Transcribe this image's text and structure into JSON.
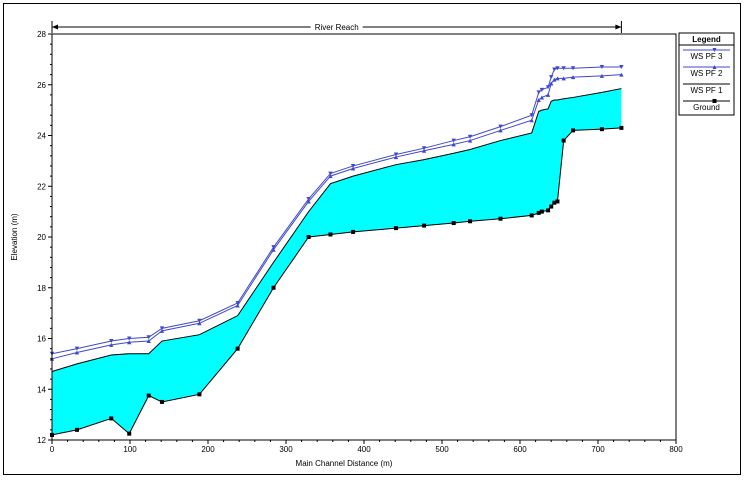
{
  "chart_data": {
    "type": "area",
    "xlabel": "Main Channel Distance (m)",
    "ylabel": "Elevation (m)",
    "xlim": [
      0,
      800
    ],
    "ylim": [
      12,
      28
    ],
    "x_ticks": [
      0,
      100,
      200,
      300,
      400,
      500,
      600,
      700,
      800
    ],
    "y_ticks": [
      12,
      14,
      16,
      18,
      20,
      22,
      24,
      26,
      28
    ],
    "grid": false,
    "reach_label": "River Reach",
    "reach_range": [
      0,
      730
    ],
    "legend": {
      "title": "Legend",
      "placement": "right",
      "entries": [
        "WS  PF 3",
        "WS  PF 2",
        "WS  PF 1",
        "Ground"
      ]
    },
    "colors": {
      "ws_pf3": "#3f48cc",
      "ws_pf2": "#3f48cc",
      "ws_pf1_fill": "#00ffff",
      "ground": "#000000"
    },
    "series": [
      {
        "name": "WS  PF 3",
        "marker": "triangle-down",
        "x": [
          0,
          32,
          76,
          99,
          124,
          141,
          189,
          238,
          284,
          329,
          357,
          386,
          441,
          477,
          515,
          536,
          575,
          615,
          624,
          628,
          636,
          640,
          644,
          648,
          656,
          668,
          705,
          730
        ],
        "y": [
          15.4,
          15.6,
          15.9,
          16.0,
          16.05,
          16.4,
          16.7,
          17.4,
          19.6,
          21.5,
          22.5,
          22.8,
          23.25,
          23.5,
          23.8,
          23.95,
          24.35,
          24.8,
          25.7,
          25.8,
          25.9,
          26.3,
          26.6,
          26.65,
          26.65,
          26.65,
          26.7,
          26.7
        ]
      },
      {
        "name": "WS  PF 2",
        "marker": "triangle-up",
        "x": [
          0,
          32,
          76,
          99,
          124,
          141,
          189,
          238,
          284,
          329,
          357,
          386,
          441,
          477,
          515,
          536,
          575,
          615,
          624,
          628,
          636,
          640,
          644,
          648,
          656,
          668,
          705,
          730
        ],
        "y": [
          15.2,
          15.45,
          15.75,
          15.85,
          15.9,
          16.3,
          16.6,
          17.3,
          19.5,
          21.4,
          22.4,
          22.7,
          23.15,
          23.4,
          23.65,
          23.8,
          24.2,
          24.6,
          25.4,
          25.5,
          25.6,
          26.05,
          26.2,
          26.25,
          26.25,
          26.3,
          26.35,
          26.4
        ]
      },
      {
        "name": "WS  PF 1",
        "marker": "none",
        "x": [
          0,
          32,
          76,
          99,
          124,
          141,
          189,
          238,
          284,
          329,
          357,
          386,
          441,
          477,
          515,
          536,
          575,
          615,
          624,
          628,
          636,
          640,
          644,
          648,
          656,
          668,
          705,
          730
        ],
        "y": [
          14.7,
          15.0,
          15.35,
          15.4,
          15.4,
          15.9,
          16.15,
          16.9,
          19.0,
          21.0,
          22.1,
          22.4,
          22.85,
          23.05,
          23.3,
          23.45,
          23.8,
          24.1,
          24.95,
          25.0,
          25.05,
          25.35,
          25.4,
          25.4,
          25.45,
          25.5,
          25.7,
          25.85
        ]
      },
      {
        "name": "Ground",
        "marker": "square",
        "x": [
          0,
          32,
          76,
          99,
          124,
          141,
          189,
          238,
          284,
          329,
          357,
          386,
          441,
          477,
          515,
          536,
          575,
          615,
          624,
          628,
          636,
          640,
          644,
          648,
          656,
          668,
          705,
          730
        ],
        "y": [
          12.2,
          12.4,
          12.85,
          12.25,
          13.75,
          13.5,
          13.8,
          15.6,
          18.0,
          20.0,
          20.1,
          20.2,
          20.35,
          20.45,
          20.55,
          20.62,
          20.72,
          20.85,
          20.95,
          21.0,
          21.05,
          21.2,
          21.35,
          21.4,
          23.8,
          24.2,
          24.25,
          24.3
        ]
      }
    ]
  }
}
